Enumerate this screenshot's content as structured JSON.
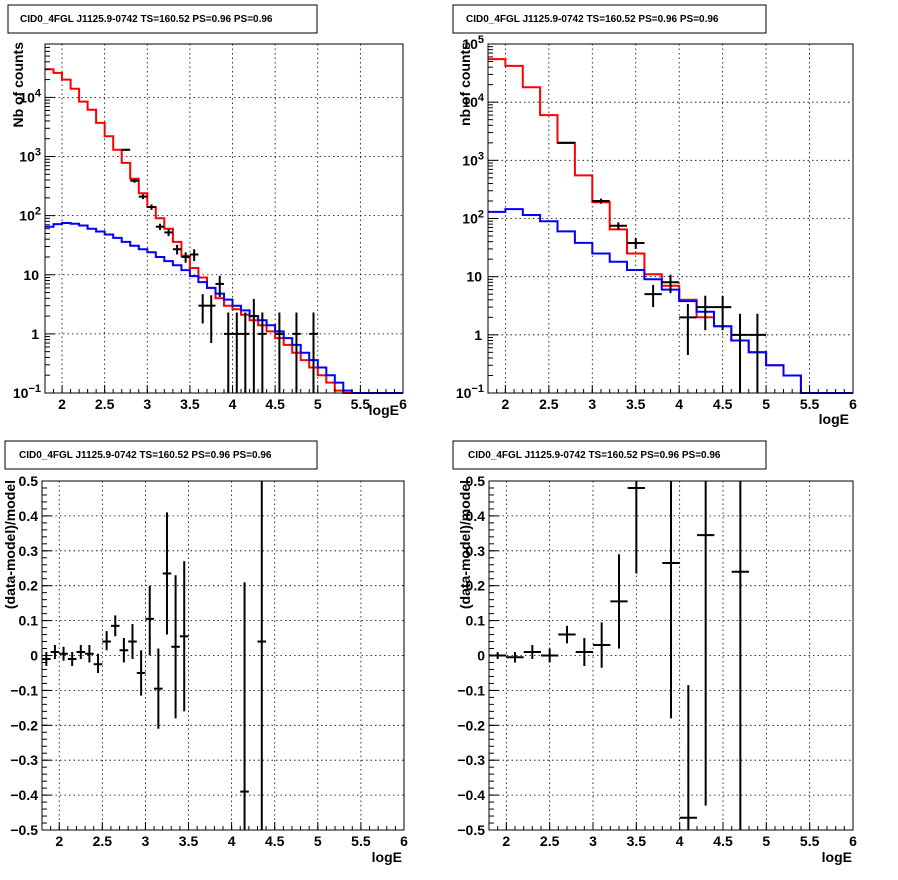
{
  "chart_data": [
    {
      "id": "p1",
      "type": "line",
      "title": "CID0_4FGL J1125.9-0742 TS=160.52 PS=0.96 PS=0.96",
      "xlabel": "logE",
      "ylabel": "Nb of counts",
      "xlim": [
        1.8,
        6.0
      ],
      "ylim": [
        0.1,
        80000
      ],
      "yscale": "log",
      "grid": true,
      "xticks": [
        2,
        2.5,
        3,
        3.5,
        4,
        4.5,
        5,
        5.5,
        6
      ],
      "xtick_labels": [
        "2",
        "2.5",
        "3",
        "3.5",
        "4",
        "4.5",
        "5",
        "5.5",
        "6"
      ],
      "yticks": [
        {
          "value": 0.1,
          "base": "10",
          "exp": "−1"
        },
        {
          "value": 1,
          "base": "1",
          "exp": ""
        },
        {
          "value": 10,
          "base": "10",
          "exp": ""
        },
        {
          "value": 100,
          "base": "10",
          "exp": "2"
        },
        {
          "value": 1000,
          "base": "10",
          "exp": "3"
        },
        {
          "value": 10000,
          "base": "10",
          "exp": "4"
        }
      ],
      "edges": [
        1.8,
        1.9,
        2.0,
        2.1,
        2.2,
        2.3,
        2.4,
        2.5,
        2.6,
        2.7,
        2.8,
        2.9,
        3.0,
        3.1,
        3.2,
        3.3,
        3.4,
        3.5,
        3.6,
        3.7,
        3.8,
        3.9,
        4.0,
        4.1,
        4.2,
        4.3,
        4.4,
        4.5,
        4.6,
        4.7,
        4.8,
        4.9,
        5.0,
        5.1,
        5.2,
        5.3,
        5.4,
        5.5,
        5.6,
        5.7,
        5.8,
        5.9,
        6.0
      ],
      "series": [
        {
          "color": "#ff0000",
          "values": [
            30000,
            26000,
            20000,
            14000,
            8500,
            6200,
            3700,
            2200,
            1300,
            780,
            420,
            240,
            140,
            90,
            60,
            36,
            21,
            13,
            9,
            6,
            4,
            3,
            2.6,
            2.1,
            1.7,
            1.4,
            1.1,
            0.85,
            0.65,
            0.48,
            0.36,
            0.27,
            0.2,
            0.15,
            0.11,
            0.1,
            0.1,
            0.1,
            0.1,
            0.1,
            0.1,
            0.1
          ]
        },
        {
          "color": "#0000ff",
          "values": [
            65,
            72,
            75,
            73,
            68,
            60,
            54,
            48,
            42,
            36,
            31,
            27,
            24,
            20,
            17,
            14.5,
            12,
            9.5,
            7.5,
            6,
            4.8,
            3.8,
            3,
            2.5,
            2,
            1.7,
            1.4,
            1.1,
            0.85,
            0.65,
            0.48,
            0.36,
            0.27,
            0.2,
            0.15,
            0.11,
            0.1,
            0.1,
            0.1,
            0.1,
            0.1,
            0.1
          ]
        }
      ],
      "points": [
        {
          "x": 2.75,
          "y": 1300,
          "xerr": 0.05,
          "lo": 1250,
          "hi": 1350
        },
        {
          "x": 2.85,
          "y": 390,
          "xerr": 0.05,
          "lo": 360,
          "hi": 420
        },
        {
          "x": 2.95,
          "y": 210,
          "xerr": 0.05,
          "lo": 190,
          "hi": 230
        },
        {
          "x": 3.05,
          "y": 140,
          "xerr": 0.05,
          "lo": 125,
          "hi": 155
        },
        {
          "x": 3.15,
          "y": 65,
          "xerr": 0.05,
          "lo": 57,
          "hi": 73
        },
        {
          "x": 3.25,
          "y": 52,
          "xerr": 0.05,
          "lo": 45,
          "hi": 59
        },
        {
          "x": 3.35,
          "y": 27,
          "xerr": 0.05,
          "lo": 22,
          "hi": 32
        },
        {
          "x": 3.45,
          "y": 20,
          "xerr": 0.05,
          "lo": 16,
          "hi": 24
        },
        {
          "x": 3.55,
          "y": 22,
          "xerr": 0.05,
          "lo": 17,
          "hi": 27
        },
        {
          "x": 3.65,
          "y": 3,
          "xerr": 0.05,
          "lo": 1.5,
          "hi": 4.7
        },
        {
          "x": 3.75,
          "y": 3,
          "xerr": 0.05,
          "lo": 0.7,
          "hi": 4.5
        },
        {
          "x": 3.85,
          "y": 7,
          "xerr": 0.05,
          "lo": 4.2,
          "hi": 9.6
        },
        {
          "x": 3.95,
          "y": 1,
          "xerr": 0.05,
          "lo": 0.1,
          "hi": 2.3
        },
        {
          "x": 4.05,
          "y": 1,
          "xerr": 0.05,
          "lo": 0.1,
          "hi": 2.3
        },
        {
          "x": 4.15,
          "y": 1,
          "xerr": 0.05,
          "lo": 0.1,
          "hi": 2.3
        },
        {
          "x": 4.25,
          "y": 2,
          "xerr": 0.05,
          "lo": 0.1,
          "hi": 3.9
        },
        {
          "x": 4.35,
          "y": 1,
          "xerr": 0.05,
          "lo": 0.1,
          "hi": 2.3
        },
        {
          "x": 4.55,
          "y": 1,
          "xerr": 0.05,
          "lo": 0.1,
          "hi": 2.3
        },
        {
          "x": 4.75,
          "y": 1,
          "xerr": 0.05,
          "lo": 0.1,
          "hi": 2.3
        },
        {
          "x": 4.95,
          "y": 1,
          "xerr": 0.05,
          "lo": 0.1,
          "hi": 2.3
        }
      ]
    },
    {
      "id": "p2",
      "type": "line",
      "title": "CID0_4FGL J1125.9-0742 TS=160.52 PS=0.96 PS=0.96",
      "xlabel": "logE",
      "ylabel": "nb of counts",
      "xlim": [
        1.8,
        6.0
      ],
      "ylim": [
        0.1,
        100000
      ],
      "yscale": "log",
      "grid": true,
      "xticks": [
        2,
        2.5,
        3,
        3.5,
        4,
        4.5,
        5,
        5.5,
        6
      ],
      "xtick_labels": [
        "2",
        "2.5",
        "3",
        "3.5",
        "4",
        "4.5",
        "5",
        "5.5",
        "6"
      ],
      "yticks": [
        {
          "value": 0.1,
          "base": "10",
          "exp": "−1"
        },
        {
          "value": 1,
          "base": "1",
          "exp": ""
        },
        {
          "value": 10,
          "base": "10",
          "exp": ""
        },
        {
          "value": 100,
          "base": "10",
          "exp": "2"
        },
        {
          "value": 1000,
          "base": "10",
          "exp": "3"
        },
        {
          "value": 10000,
          "base": "10",
          "exp": "4"
        },
        {
          "value": 100000,
          "base": "10",
          "exp": "5"
        }
      ],
      "edges": [
        1.8,
        2.0,
        2.2,
        2.4,
        2.6,
        2.8,
        3.0,
        3.2,
        3.4,
        3.6,
        3.8,
        4.0,
        4.2,
        4.4,
        4.6,
        4.8,
        5.0,
        5.2,
        5.4,
        5.6,
        5.8,
        6.0
      ],
      "series": [
        {
          "color": "#ff0000",
          "values": [
            55000,
            42000,
            18000,
            6000,
            2000,
            550,
            190,
            65,
            25,
            11,
            7,
            4,
            2,
            1.4,
            0.8,
            0.5,
            0.3,
            0.2,
            0.1,
            0.1,
            0.1
          ]
        },
        {
          "color": "#0000ff",
          "values": [
            130,
            145,
            115,
            90,
            60,
            38,
            25,
            18,
            13,
            9,
            6,
            3.8,
            2.5,
            1.4,
            0.8,
            0.5,
            0.3,
            0.2,
            0.1,
            0.1,
            0.1
          ]
        }
      ],
      "points": [
        {
          "x": 2.7,
          "y": 2000,
          "xerr": 0.1,
          "lo": 1930,
          "hi": 2070
        },
        {
          "x": 3.1,
          "y": 200,
          "xerr": 0.1,
          "lo": 180,
          "hi": 220
        },
        {
          "x": 3.3,
          "y": 75,
          "xerr": 0.1,
          "lo": 64,
          "hi": 86
        },
        {
          "x": 3.5,
          "y": 38,
          "xerr": 0.1,
          "lo": 30,
          "hi": 46
        },
        {
          "x": 3.7,
          "y": 5,
          "xerr": 0.1,
          "lo": 3,
          "hi": 7.2
        },
        {
          "x": 3.9,
          "y": 8,
          "xerr": 0.1,
          "lo": 5.2,
          "hi": 10.8
        },
        {
          "x": 4.1,
          "y": 2,
          "xerr": 0.1,
          "lo": 0.45,
          "hi": 3.4
        },
        {
          "x": 4.3,
          "y": 3,
          "xerr": 0.1,
          "lo": 1.2,
          "hi": 4.7
        },
        {
          "x": 4.5,
          "y": 3,
          "xerr": 0.1,
          "lo": 1.2,
          "hi": 4.7
        },
        {
          "x": 4.7,
          "y": 1,
          "xerr": 0.1,
          "lo": 0.1,
          "hi": 2.3
        },
        {
          "x": 4.9,
          "y": 1,
          "xerr": 0.1,
          "lo": 0.1,
          "hi": 2.3
        }
      ]
    },
    {
      "id": "p3",
      "type": "scatter",
      "title": "CID0_4FGL J1125.9-0742 TS=160.52 PS=0.96 PS=0.96",
      "xlabel": "logE",
      "ylabel": "(data-model)/model",
      "xlim": [
        1.8,
        6.0
      ],
      "ylim": [
        -0.5,
        0.5
      ],
      "yscale": "linear",
      "grid": true,
      "xticks": [
        2,
        2.5,
        3,
        3.5,
        4,
        4.5,
        5,
        5.5,
        6
      ],
      "xtick_labels": [
        "2",
        "2.5",
        "3",
        "3.5",
        "4",
        "4.5",
        "5",
        "5.5",
        "6"
      ],
      "yticks_linear": [
        -0.5,
        -0.4,
        -0.3,
        -0.2,
        -0.1,
        0,
        0.1,
        0.2,
        0.3,
        0.4,
        0.5
      ],
      "ytick_labels": [
        "−0.5",
        "−0.4",
        "−0.3",
        "−0.2",
        "−0.1",
        "0",
        "0.1",
        "0.2",
        "0.3",
        "0.4",
        "0.5"
      ],
      "points": [
        {
          "x": 1.85,
          "y": -0.01,
          "xerr": 0.05,
          "lo": -0.03,
          "hi": 0.01
        },
        {
          "x": 1.95,
          "y": 0.01,
          "xerr": 0.05,
          "lo": -0.01,
          "hi": 0.03
        },
        {
          "x": 2.05,
          "y": 0.005,
          "xerr": 0.05,
          "lo": -0.015,
          "hi": 0.025
        },
        {
          "x": 2.15,
          "y": -0.01,
          "xerr": 0.05,
          "lo": -0.03,
          "hi": 0.01
        },
        {
          "x": 2.25,
          "y": 0.01,
          "xerr": 0.05,
          "lo": -0.01,
          "hi": 0.03
        },
        {
          "x": 2.35,
          "y": 0.005,
          "xerr": 0.05,
          "lo": -0.02,
          "hi": 0.03
        },
        {
          "x": 2.45,
          "y": -0.025,
          "xerr": 0.05,
          "lo": -0.05,
          "hi": 0.005
        },
        {
          "x": 2.55,
          "y": 0.04,
          "xerr": 0.05,
          "lo": 0.015,
          "hi": 0.07
        },
        {
          "x": 2.65,
          "y": 0.085,
          "xerr": 0.05,
          "lo": 0.055,
          "hi": 0.115
        },
        {
          "x": 2.75,
          "y": 0.015,
          "xerr": 0.05,
          "lo": -0.02,
          "hi": 0.05
        },
        {
          "x": 2.85,
          "y": 0.04,
          "xerr": 0.05,
          "lo": -0.01,
          "hi": 0.09
        },
        {
          "x": 2.95,
          "y": -0.05,
          "xerr": 0.05,
          "lo": -0.115,
          "hi": 0.015
        },
        {
          "x": 3.05,
          "y": 0.105,
          "xerr": 0.05,
          "lo": 0.0,
          "hi": 0.2
        },
        {
          "x": 3.15,
          "y": -0.095,
          "xerr": 0.05,
          "lo": -0.21,
          "hi": 0.02
        },
        {
          "x": 3.25,
          "y": 0.235,
          "xerr": 0.05,
          "lo": 0.06,
          "hi": 0.41
        },
        {
          "x": 3.35,
          "y": 0.025,
          "xerr": 0.05,
          "lo": -0.18,
          "hi": 0.23
        },
        {
          "x": 3.45,
          "y": 0.055,
          "xerr": 0.05,
          "lo": -0.16,
          "hi": 0.27
        },
        {
          "x": 4.15,
          "y": -0.39,
          "xerr": 0.05,
          "lo": -0.5,
          "hi": 0.21
        },
        {
          "x": 4.35,
          "y": 0.04,
          "xerr": 0.05,
          "lo": -0.5,
          "hi": 0.5
        }
      ]
    },
    {
      "id": "p4",
      "type": "scatter",
      "title": "CID0_4FGL J1125.9-0742 TS=160.52 PS=0.96 PS=0.96",
      "xlabel": "logE",
      "ylabel": "(data-model)/model",
      "xlim": [
        1.8,
        6.0
      ],
      "ylim": [
        -0.5,
        0.5
      ],
      "yscale": "linear",
      "grid": true,
      "xticks": [
        2,
        2.5,
        3,
        3.5,
        4,
        4.5,
        5,
        5.5,
        6
      ],
      "xtick_labels": [
        "2",
        "2.5",
        "3",
        "3.5",
        "4",
        "4.5",
        "5",
        "5.5",
        "6"
      ],
      "yticks_linear": [
        -0.5,
        -0.4,
        -0.3,
        -0.2,
        -0.1,
        0,
        0.1,
        0.2,
        0.3,
        0.4,
        0.5
      ],
      "ytick_labels": [
        "−0.5",
        "−0.4",
        "−0.3",
        "−0.2",
        "−0.1",
        "0",
        "0.1",
        "0.2",
        "0.3",
        "0.4",
        "0.5"
      ],
      "points": [
        {
          "x": 1.9,
          "y": 0.0,
          "xerr": 0.1,
          "lo": -0.01,
          "hi": 0.01
        },
        {
          "x": 2.1,
          "y": -0.005,
          "xerr": 0.1,
          "lo": -0.02,
          "hi": 0.01
        },
        {
          "x": 2.3,
          "y": 0.01,
          "xerr": 0.1,
          "lo": -0.01,
          "hi": 0.03
        },
        {
          "x": 2.5,
          "y": 0.0,
          "xerr": 0.1,
          "lo": -0.02,
          "hi": 0.02
        },
        {
          "x": 2.7,
          "y": 0.06,
          "xerr": 0.1,
          "lo": 0.035,
          "hi": 0.085
        },
        {
          "x": 2.9,
          "y": 0.01,
          "xerr": 0.1,
          "lo": -0.03,
          "hi": 0.05
        },
        {
          "x": 3.1,
          "y": 0.03,
          "xerr": 0.1,
          "lo": -0.035,
          "hi": 0.095
        },
        {
          "x": 3.3,
          "y": 0.155,
          "xerr": 0.1,
          "lo": 0.02,
          "hi": 0.29
        },
        {
          "x": 3.5,
          "y": 0.48,
          "xerr": 0.1,
          "lo": 0.235,
          "hi": 0.5
        },
        {
          "x": 3.9,
          "y": 0.265,
          "xerr": 0.1,
          "lo": -0.18,
          "hi": 0.5
        },
        {
          "x": 4.1,
          "y": -0.465,
          "xerr": 0.1,
          "lo": -0.5,
          "hi": -0.085
        },
        {
          "x": 4.3,
          "y": 0.345,
          "xerr": 0.1,
          "lo": -0.43,
          "hi": 0.5
        },
        {
          "x": 4.7,
          "y": 0.24,
          "xerr": 0.1,
          "lo": -0.5,
          "hi": 0.5
        }
      ]
    }
  ]
}
